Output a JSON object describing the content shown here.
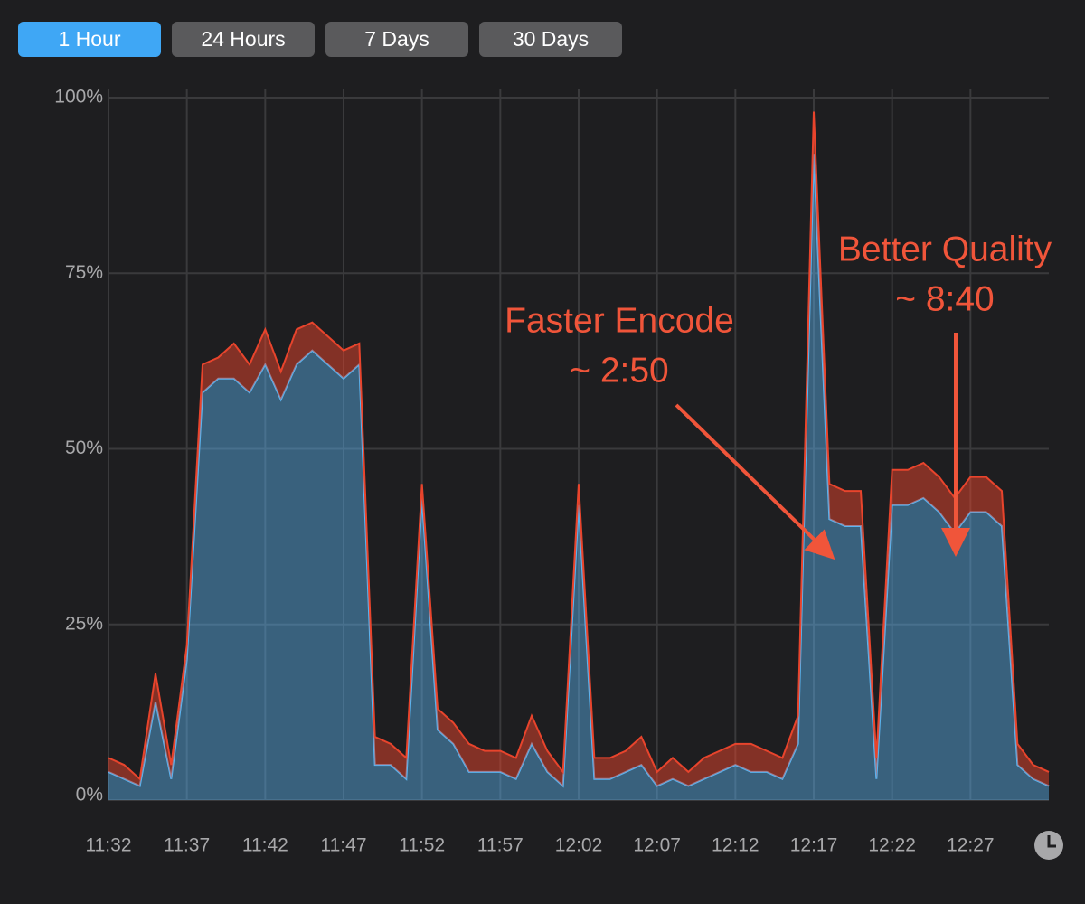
{
  "tabs": [
    "1 Hour",
    "24 Hours",
    "7 Days",
    "30 Days"
  ],
  "active_tab": 0,
  "chart_data": {
    "type": "stacked-area",
    "categories": [
      "11:32",
      null,
      null,
      null,
      null,
      "11:37",
      null,
      null,
      null,
      null,
      "11:42",
      null,
      null,
      null,
      null,
      "11:47",
      null,
      null,
      null,
      null,
      "11:52",
      null,
      null,
      null,
      null,
      "11:57",
      null,
      null,
      null,
      null,
      "12:02",
      null,
      null,
      null,
      null,
      "12:07",
      null,
      null,
      null,
      null,
      "12:12",
      null,
      null,
      null,
      null,
      "12:17",
      null,
      null,
      null,
      null,
      "12:22",
      null,
      null,
      null,
      null,
      "12:27",
      null,
      null,
      null,
      null,
      null
    ],
    "series": [
      {
        "color": "#5ab4f0",
        "values": [
          4,
          3,
          2,
          14,
          3,
          20,
          58,
          60,
          60,
          58,
          62,
          57,
          62,
          64,
          62,
          60,
          62,
          5,
          5,
          3,
          43,
          10,
          8,
          4,
          4,
          4,
          3,
          8,
          4,
          2,
          42,
          3,
          3,
          4,
          5,
          2,
          3,
          2,
          3,
          4,
          5,
          4,
          4,
          3,
          8,
          92,
          40,
          39,
          39,
          3,
          42,
          42,
          43,
          41,
          38,
          41,
          41,
          39,
          5,
          3,
          2
        ]
      },
      {
        "color": "#e8442c",
        "values": [
          2,
          2,
          1,
          4,
          2,
          2,
          4,
          3,
          5,
          4,
          5,
          4,
          5,
          4,
          4,
          4,
          3,
          4,
          3,
          3,
          2,
          3,
          3,
          4,
          3,
          3,
          3,
          4,
          3,
          2,
          3,
          3,
          3,
          3,
          4,
          2,
          3,
          2,
          3,
          3,
          3,
          4,
          3,
          3,
          4,
          6,
          5,
          5,
          5,
          3,
          5,
          5,
          5,
          5,
          5,
          5,
          5,
          5,
          3,
          2,
          2
        ]
      }
    ],
    "ylim": [
      0,
      100
    ],
    "yticks": [
      {
        "value": 0,
        "label": "0%"
      },
      {
        "value": 25,
        "label": "25%"
      },
      {
        "value": 50,
        "label": "50%"
      },
      {
        "value": 75,
        "label": "75%"
      },
      {
        "value": 100,
        "label": "100%"
      }
    ],
    "grid": true,
    "annotations": [
      {
        "lines": [
          "Faster Encode",
          "~ 2:50"
        ]
      },
      {
        "lines": [
          "Better Quality",
          "~ 8:40"
        ]
      }
    ]
  }
}
